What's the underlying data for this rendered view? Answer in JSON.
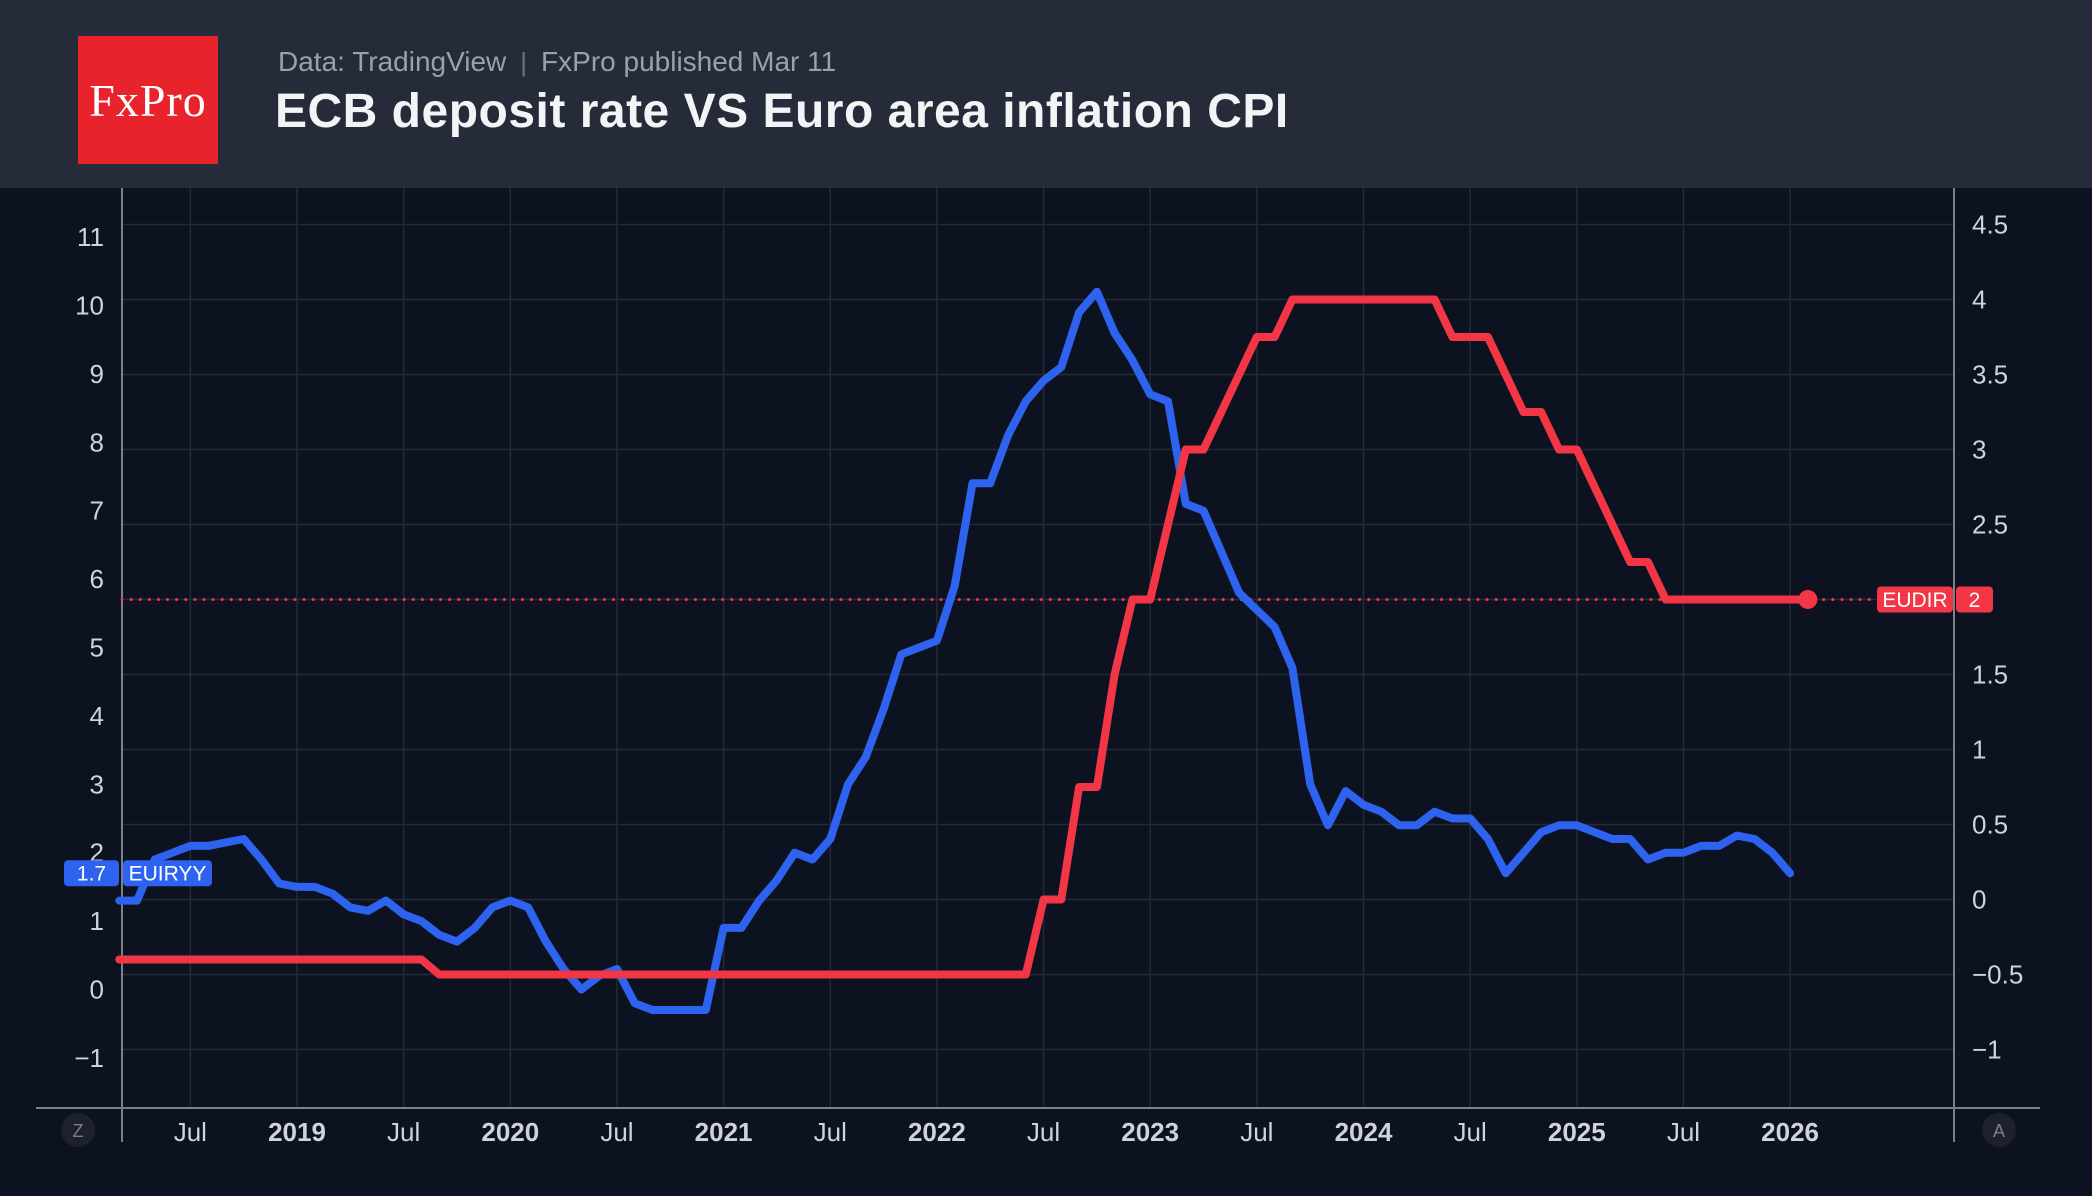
{
  "header": {
    "logo_text": "FxPro",
    "data_source": "Data: TradingView",
    "separator": "|",
    "published": "FxPro published Mar 11",
    "title": "ECB deposit rate VS Euro area inflation CPI"
  },
  "colors": {
    "header_bg": "#262b3a",
    "chart_bg": "#0d1220",
    "logo_red": "#e8232b",
    "line_blue": "#2e63f0",
    "line_red": "#f23645",
    "grid": "#242a36",
    "axis_line": "#7b808a",
    "tick_text": "#cfd3da",
    "button_bg": "#1d212c",
    "button_text": "#7b7f8b",
    "badge_text": "#ffffff"
  },
  "toolbar": {
    "zoom_button": "Z",
    "auto_button": "A"
  },
  "badges": {
    "euiryy_value": "1.7",
    "euiryy_label": "EUIRYY",
    "eudir_label": "EUDIR",
    "eudir_value": "2"
  },
  "chart_data": {
    "type": "line",
    "title": "ECB deposit rate VS Euro area inflation CPI",
    "legend_position": "on-chart badges",
    "grid": true,
    "left_axis": {
      "series": "EUIRYY (Euro area inflation CPI, % y/y)",
      "range": [
        -1,
        11
      ],
      "ticks": [
        [
          11,
          "11"
        ],
        [
          10,
          "10"
        ],
        [
          9,
          "9"
        ],
        [
          8,
          "8"
        ],
        [
          7,
          "7"
        ],
        [
          6,
          "6"
        ],
        [
          5,
          "5"
        ],
        [
          4,
          "4"
        ],
        [
          3,
          "3"
        ],
        [
          2,
          "2"
        ],
        [
          1,
          "1"
        ],
        [
          0,
          "0"
        ],
        [
          -1,
          "−1"
        ]
      ]
    },
    "right_axis": {
      "series": "EUDIR (ECB deposit rate, %)",
      "range": [
        -1,
        4.5
      ],
      "ticks": [
        [
          4.5,
          "4.5"
        ],
        [
          4,
          "4"
        ],
        [
          3.5,
          "3.5"
        ],
        [
          3,
          "3"
        ],
        [
          2.5,
          "2.5"
        ],
        [
          1.5,
          "1.5"
        ],
        [
          1,
          "1"
        ],
        [
          0.5,
          "0.5"
        ],
        [
          0,
          "0"
        ],
        [
          -0.5,
          "−0.5"
        ],
        [
          -1,
          "−1"
        ]
      ],
      "gridline_values": [
        4.5,
        4,
        3.5,
        3,
        2.5,
        2,
        1.5,
        1,
        0.5,
        0,
        -0.5,
        -1
      ]
    },
    "x_axis": {
      "range_years": [
        2018.15,
        2026.75
      ],
      "ticks": [
        [
          2018.5,
          "Jul",
          0
        ],
        [
          2019,
          "2019",
          1
        ],
        [
          2019.5,
          "Jul",
          0
        ],
        [
          2020,
          "2020",
          1
        ],
        [
          2020.5,
          "Jul",
          0
        ],
        [
          2021,
          "2021",
          1
        ],
        [
          2021.5,
          "Jul",
          0
        ],
        [
          2022,
          "2022",
          1
        ],
        [
          2022.5,
          "Jul",
          0
        ],
        [
          2023,
          "2023",
          1
        ],
        [
          2023.5,
          "Jul",
          0
        ],
        [
          2024,
          "2024",
          1
        ],
        [
          2024.5,
          "Jul",
          0
        ],
        [
          2025,
          "2025",
          1
        ],
        [
          2025.5,
          "Jul",
          0
        ],
        [
          2026,
          "2026",
          1
        ]
      ]
    },
    "reference_line": {
      "series": "EUDIR",
      "axis": "right",
      "value": 2,
      "style": "dotted",
      "color": "#f23645"
    },
    "series": [
      {
        "name": "EUIRYY",
        "axis": "left",
        "color": "#2e63f0",
        "last_value": 1.7,
        "end_marker": false,
        "points": [
          [
            "2018-03",
            1.3
          ],
          [
            "2018-04",
            1.3
          ],
          [
            "2018-05",
            1.9
          ],
          [
            "2018-06",
            2.0
          ],
          [
            "2018-07",
            2.1
          ],
          [
            "2018-08",
            2.1
          ],
          [
            "2018-09",
            2.15
          ],
          [
            "2018-10",
            2.2
          ],
          [
            "2018-11",
            1.9
          ],
          [
            "2018-12",
            1.55
          ],
          [
            "2019-01",
            1.5
          ],
          [
            "2019-02",
            1.5
          ],
          [
            "2019-03",
            1.4
          ],
          [
            "2019-04",
            1.2
          ],
          [
            "2019-05",
            1.15
          ],
          [
            "2019-06",
            1.3
          ],
          [
            "2019-07",
            1.1
          ],
          [
            "2019-08",
            1.0
          ],
          [
            "2019-09",
            0.8
          ],
          [
            "2019-10",
            0.7
          ],
          [
            "2019-11",
            0.9
          ],
          [
            "2019-12",
            1.2
          ],
          [
            "2020-01",
            1.3
          ],
          [
            "2020-02",
            1.2
          ],
          [
            "2020-03",
            0.7
          ],
          [
            "2020-04",
            0.3
          ],
          [
            "2020-05",
            0.0
          ],
          [
            "2020-06",
            0.2
          ],
          [
            "2020-07",
            0.3
          ],
          [
            "2020-08",
            -0.2
          ],
          [
            "2020-09",
            -0.3
          ],
          [
            "2020-10",
            -0.3
          ],
          [
            "2020-11",
            -0.3
          ],
          [
            "2020-12",
            -0.3
          ],
          [
            "2021-01",
            0.9
          ],
          [
            "2021-02",
            0.9
          ],
          [
            "2021-03",
            1.3
          ],
          [
            "2021-04",
            1.6
          ],
          [
            "2021-05",
            2.0
          ],
          [
            "2021-06",
            1.9
          ],
          [
            "2021-07",
            2.2
          ],
          [
            "2021-08",
            3.0
          ],
          [
            "2021-09",
            3.4
          ],
          [
            "2021-10",
            4.1
          ],
          [
            "2021-11",
            4.9
          ],
          [
            "2021-12",
            5.0
          ],
          [
            "2022-01",
            5.1
          ],
          [
            "2022-02",
            5.9
          ],
          [
            "2022-03",
            7.4
          ],
          [
            "2022-04",
            7.4
          ],
          [
            "2022-05",
            8.1
          ],
          [
            "2022-06",
            8.6
          ],
          [
            "2022-07",
            8.9
          ],
          [
            "2022-08",
            9.1
          ],
          [
            "2022-09",
            9.9
          ],
          [
            "2022-10",
            10.2
          ],
          [
            "2022-11",
            9.6
          ],
          [
            "2022-12",
            9.2
          ],
          [
            "2023-01",
            8.7
          ],
          [
            "2023-02",
            8.6
          ],
          [
            "2023-03",
            7.1
          ],
          [
            "2023-04",
            7.0
          ],
          [
            "2023-05",
            6.4
          ],
          [
            "2023-06",
            5.8
          ],
          [
            "2023-07",
            5.55
          ],
          [
            "2023-08",
            5.3
          ],
          [
            "2023-09",
            4.7
          ],
          [
            "2023-10",
            3.0
          ],
          [
            "2023-11",
            2.4
          ],
          [
            "2023-12",
            2.9
          ],
          [
            "2024-01",
            2.7
          ],
          [
            "2024-02",
            2.6
          ],
          [
            "2024-03",
            2.4
          ],
          [
            "2024-04",
            2.4
          ],
          [
            "2024-05",
            2.6
          ],
          [
            "2024-06",
            2.5
          ],
          [
            "2024-07",
            2.5
          ],
          [
            "2024-08",
            2.2
          ],
          [
            "2024-09",
            1.7
          ],
          [
            "2024-10",
            2.0
          ],
          [
            "2024-11",
            2.3
          ],
          [
            "2024-12",
            2.4
          ],
          [
            "2025-01",
            2.4
          ],
          [
            "2025-02",
            2.3
          ],
          [
            "2025-03",
            2.2
          ],
          [
            "2025-04",
            2.2
          ],
          [
            "2025-05",
            1.9
          ],
          [
            "2025-06",
            2.0
          ],
          [
            "2025-07",
            2.0
          ],
          [
            "2025-08",
            2.1
          ],
          [
            "2025-09",
            2.1
          ],
          [
            "2025-10",
            2.25
          ],
          [
            "2025-11",
            2.2
          ],
          [
            "2025-12",
            2.0
          ],
          [
            "2026-01",
            1.7
          ]
        ]
      },
      {
        "name": "EUDIR",
        "axis": "right",
        "color": "#f23645",
        "last_value": 2,
        "end_marker": true,
        "points": [
          [
            "2018-03",
            -0.4
          ],
          [
            "2018-04",
            -0.4
          ],
          [
            "2018-05",
            -0.4
          ],
          [
            "2018-06",
            -0.4
          ],
          [
            "2018-07",
            -0.4
          ],
          [
            "2018-08",
            -0.4
          ],
          [
            "2018-09",
            -0.4
          ],
          [
            "2018-10",
            -0.4
          ],
          [
            "2018-11",
            -0.4
          ],
          [
            "2018-12",
            -0.4
          ],
          [
            "2019-01",
            -0.4
          ],
          [
            "2019-02",
            -0.4
          ],
          [
            "2019-03",
            -0.4
          ],
          [
            "2019-04",
            -0.4
          ],
          [
            "2019-05",
            -0.4
          ],
          [
            "2019-06",
            -0.4
          ],
          [
            "2019-07",
            -0.4
          ],
          [
            "2019-08",
            -0.4
          ],
          [
            "2019-09",
            -0.5
          ],
          [
            "2019-10",
            -0.5
          ],
          [
            "2019-11",
            -0.5
          ],
          [
            "2019-12",
            -0.5
          ],
          [
            "2020-01",
            -0.5
          ],
          [
            "2020-02",
            -0.5
          ],
          [
            "2020-03",
            -0.5
          ],
          [
            "2020-04",
            -0.5
          ],
          [
            "2020-05",
            -0.5
          ],
          [
            "2020-06",
            -0.5
          ],
          [
            "2020-07",
            -0.5
          ],
          [
            "2020-08",
            -0.5
          ],
          [
            "2020-09",
            -0.5
          ],
          [
            "2020-10",
            -0.5
          ],
          [
            "2020-11",
            -0.5
          ],
          [
            "2020-12",
            -0.5
          ],
          [
            "2021-01",
            -0.5
          ],
          [
            "2021-02",
            -0.5
          ],
          [
            "2021-03",
            -0.5
          ],
          [
            "2021-04",
            -0.5
          ],
          [
            "2021-05",
            -0.5
          ],
          [
            "2021-06",
            -0.5
          ],
          [
            "2021-07",
            -0.5
          ],
          [
            "2021-08",
            -0.5
          ],
          [
            "2021-09",
            -0.5
          ],
          [
            "2021-10",
            -0.5
          ],
          [
            "2021-11",
            -0.5
          ],
          [
            "2021-12",
            -0.5
          ],
          [
            "2022-01",
            -0.5
          ],
          [
            "2022-02",
            -0.5
          ],
          [
            "2022-03",
            -0.5
          ],
          [
            "2022-04",
            -0.5
          ],
          [
            "2022-05",
            -0.5
          ],
          [
            "2022-06",
            -0.5
          ],
          [
            "2022-07",
            0.0
          ],
          [
            "2022-08",
            0.0
          ],
          [
            "2022-09",
            0.75
          ],
          [
            "2022-10",
            0.75
          ],
          [
            "2022-11",
            1.5
          ],
          [
            "2022-12",
            2.0
          ],
          [
            "2023-01",
            2.0
          ],
          [
            "2023-02",
            2.5
          ],
          [
            "2023-03",
            3.0
          ],
          [
            "2023-04",
            3.0
          ],
          [
            "2023-05",
            3.25
          ],
          [
            "2023-06",
            3.5
          ],
          [
            "2023-07",
            3.75
          ],
          [
            "2023-08",
            3.75
          ],
          [
            "2023-09",
            4.0
          ],
          [
            "2023-10",
            4.0
          ],
          [
            "2023-11",
            4.0
          ],
          [
            "2023-12",
            4.0
          ],
          [
            "2024-01",
            4.0
          ],
          [
            "2024-02",
            4.0
          ],
          [
            "2024-03",
            4.0
          ],
          [
            "2024-04",
            4.0
          ],
          [
            "2024-05",
            4.0
          ],
          [
            "2024-06",
            3.75
          ],
          [
            "2024-07",
            3.75
          ],
          [
            "2024-08",
            3.75
          ],
          [
            "2024-09",
            3.5
          ],
          [
            "2024-10",
            3.25
          ],
          [
            "2024-11",
            3.25
          ],
          [
            "2024-12",
            3.0
          ],
          [
            "2025-01",
            3.0
          ],
          [
            "2025-02",
            2.75
          ],
          [
            "2025-03",
            2.5
          ],
          [
            "2025-04",
            2.25
          ],
          [
            "2025-05",
            2.25
          ],
          [
            "2025-06",
            2.0
          ],
          [
            "2025-07",
            2.0
          ],
          [
            "2025-08",
            2.0
          ],
          [
            "2025-09",
            2.0
          ],
          [
            "2025-10",
            2.0
          ],
          [
            "2025-11",
            2.0
          ],
          [
            "2025-12",
            2.0
          ],
          [
            "2026-01",
            2.0
          ],
          [
            "2026-02",
            2.0
          ]
        ]
      }
    ]
  }
}
